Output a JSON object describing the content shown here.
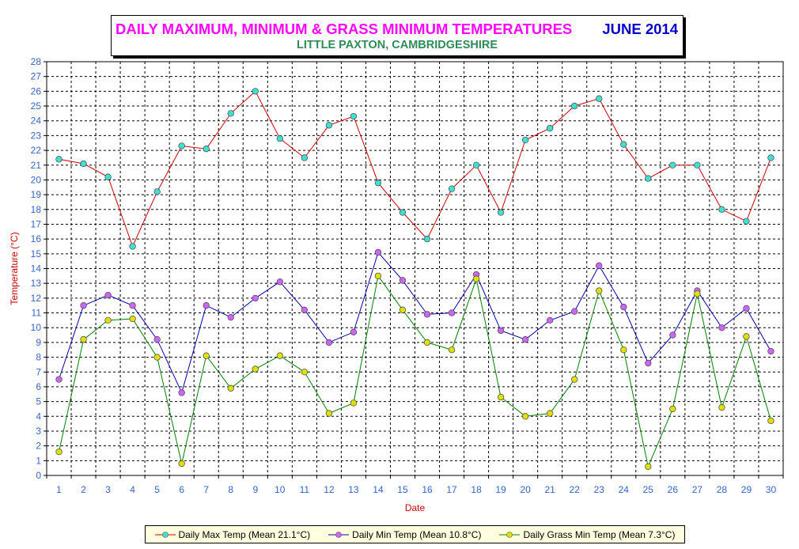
{
  "chart_data": {
    "type": "line",
    "title": "DAILY MAXIMUM, MINIMUM & GRASS MINIMUM TEMPERATURES",
    "title_date": "JUNE 2014",
    "subtitle": "LITTLE PAXTON, CAMBRIDGESHIRE",
    "xlabel": "Date",
    "ylabel": "Temperature (°C)",
    "ylim": [
      0,
      28
    ],
    "yticks": [
      0,
      1,
      2,
      3,
      4,
      5,
      6,
      7,
      8,
      9,
      10,
      11,
      12,
      13,
      14,
      15,
      16,
      17,
      18,
      19,
      20,
      21,
      22,
      23,
      24,
      25,
      26,
      27,
      28
    ],
    "x": [
      1,
      2,
      3,
      4,
      5,
      6,
      7,
      8,
      9,
      10,
      11,
      12,
      13,
      14,
      15,
      16,
      17,
      18,
      19,
      20,
      21,
      22,
      23,
      24,
      25,
      26,
      27,
      28,
      29,
      30
    ],
    "grid": true,
    "legend_position": "bottom",
    "series": [
      {
        "name": "Daily Max Temp (Mean 21.1°C)",
        "line_color": "#cc0000",
        "marker_color": "#40e0d0",
        "values": [
          21.4,
          21.1,
          20.2,
          15.5,
          19.2,
          22.3,
          22.1,
          24.5,
          26.0,
          22.8,
          21.5,
          23.7,
          24.3,
          19.8,
          17.8,
          16.0,
          19.4,
          21.0,
          17.8,
          22.7,
          23.5,
          25.0,
          25.5,
          22.4,
          20.1,
          21.0,
          21.0,
          18.0,
          17.2,
          21.5
        ]
      },
      {
        "name": "Daily Min Temp (Mean 10.8°C)",
        "line_color": "#0000aa",
        "marker_color": "#cc66ff",
        "values": [
          6.5,
          11.5,
          12.2,
          11.5,
          9.2,
          5.6,
          11.5,
          10.7,
          12.0,
          13.1,
          11.2,
          9.0,
          9.7,
          15.1,
          13.2,
          10.9,
          11.0,
          13.6,
          9.8,
          9.2,
          10.5,
          11.1,
          14.2,
          11.4,
          7.6,
          9.5,
          12.5,
          10.0,
          11.3,
          8.4
        ]
      },
      {
        "name": "Daily Grass Min Temp (Mean 7.3°C)",
        "line_color": "#008000",
        "marker_color": "#e0e000",
        "values": [
          1.6,
          9.2,
          10.5,
          10.6,
          8.0,
          0.8,
          8.1,
          5.9,
          7.2,
          8.1,
          7.0,
          4.2,
          4.9,
          13.5,
          11.2,
          9.0,
          8.5,
          13.3,
          5.3,
          4.0,
          4.2,
          6.5,
          12.5,
          8.5,
          0.6,
          4.5,
          12.3,
          4.6,
          9.4,
          3.7
        ]
      }
    ]
  }
}
